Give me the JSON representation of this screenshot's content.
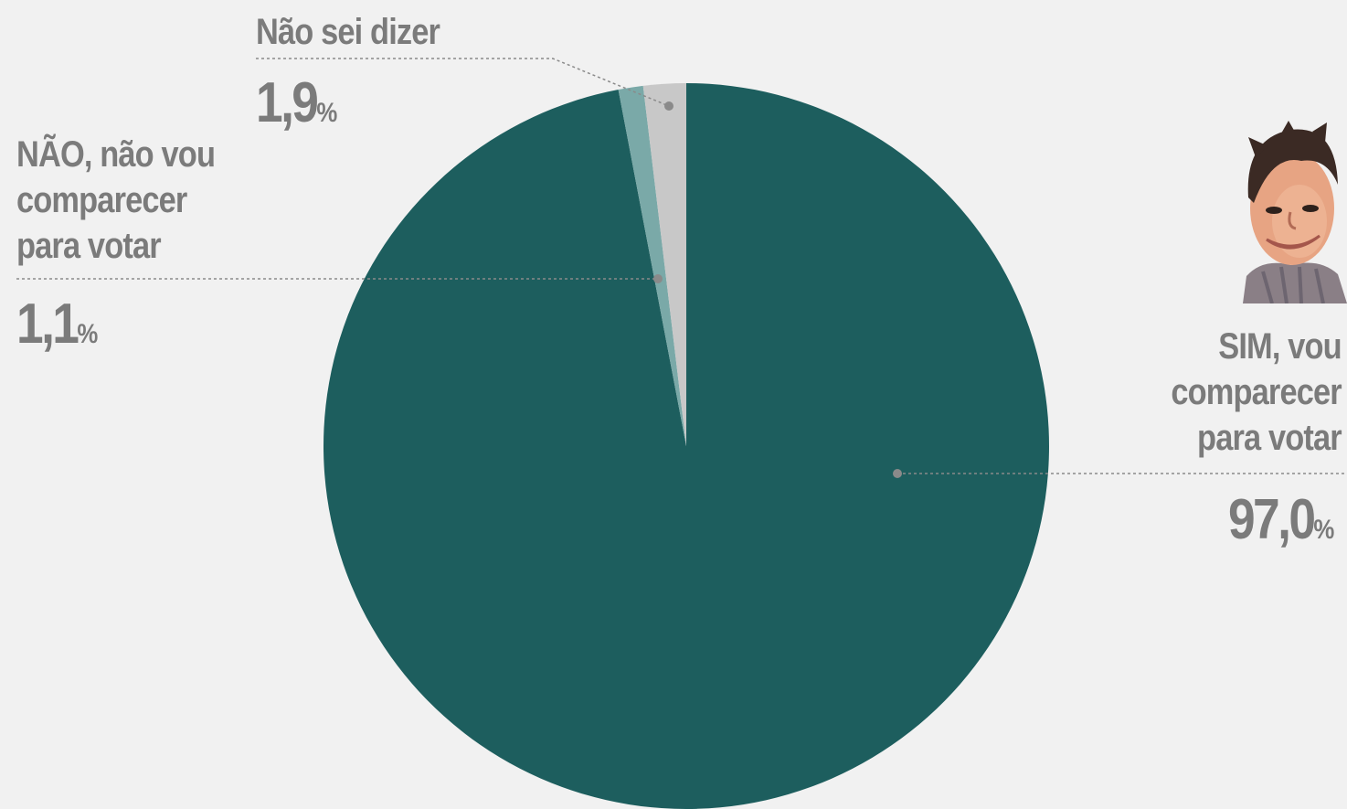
{
  "chart_data": {
    "type": "pie",
    "start_angle_deg": 0,
    "direction": "clockwise",
    "slices": [
      {
        "label": "SIM, vou comparecer para votar",
        "value": 97.0,
        "display": "97,0",
        "unit": "%",
        "color": "#1d5e5e"
      },
      {
        "label": "NÃO, não vou comparecer para votar",
        "value": 1.1,
        "display": "1,1",
        "unit": "%",
        "color": "#7aa9a8"
      },
      {
        "label": "Não sei dizer",
        "value": 1.9,
        "display": "1,9",
        "unit": "%",
        "color": "#c8c8c8"
      }
    ]
  },
  "labels": {
    "sim": {
      "lines": [
        "SIM, vou",
        "comparecer",
        "para votar"
      ],
      "value": "97,0",
      "unit": "%"
    },
    "nao": {
      "lines": [
        "NÃO, não vou",
        "comparecer",
        "para votar"
      ],
      "value": "1,1",
      "unit": "%"
    },
    "naosei": {
      "lines": [
        "Não sei dizer"
      ],
      "value": "1,9",
      "unit": "%"
    }
  },
  "colors": {
    "background": "#f1f1f1",
    "text": "#7b7b7b",
    "leader": "#8a8a8a"
  },
  "decor": {
    "avatar": "caricature-portrait"
  }
}
